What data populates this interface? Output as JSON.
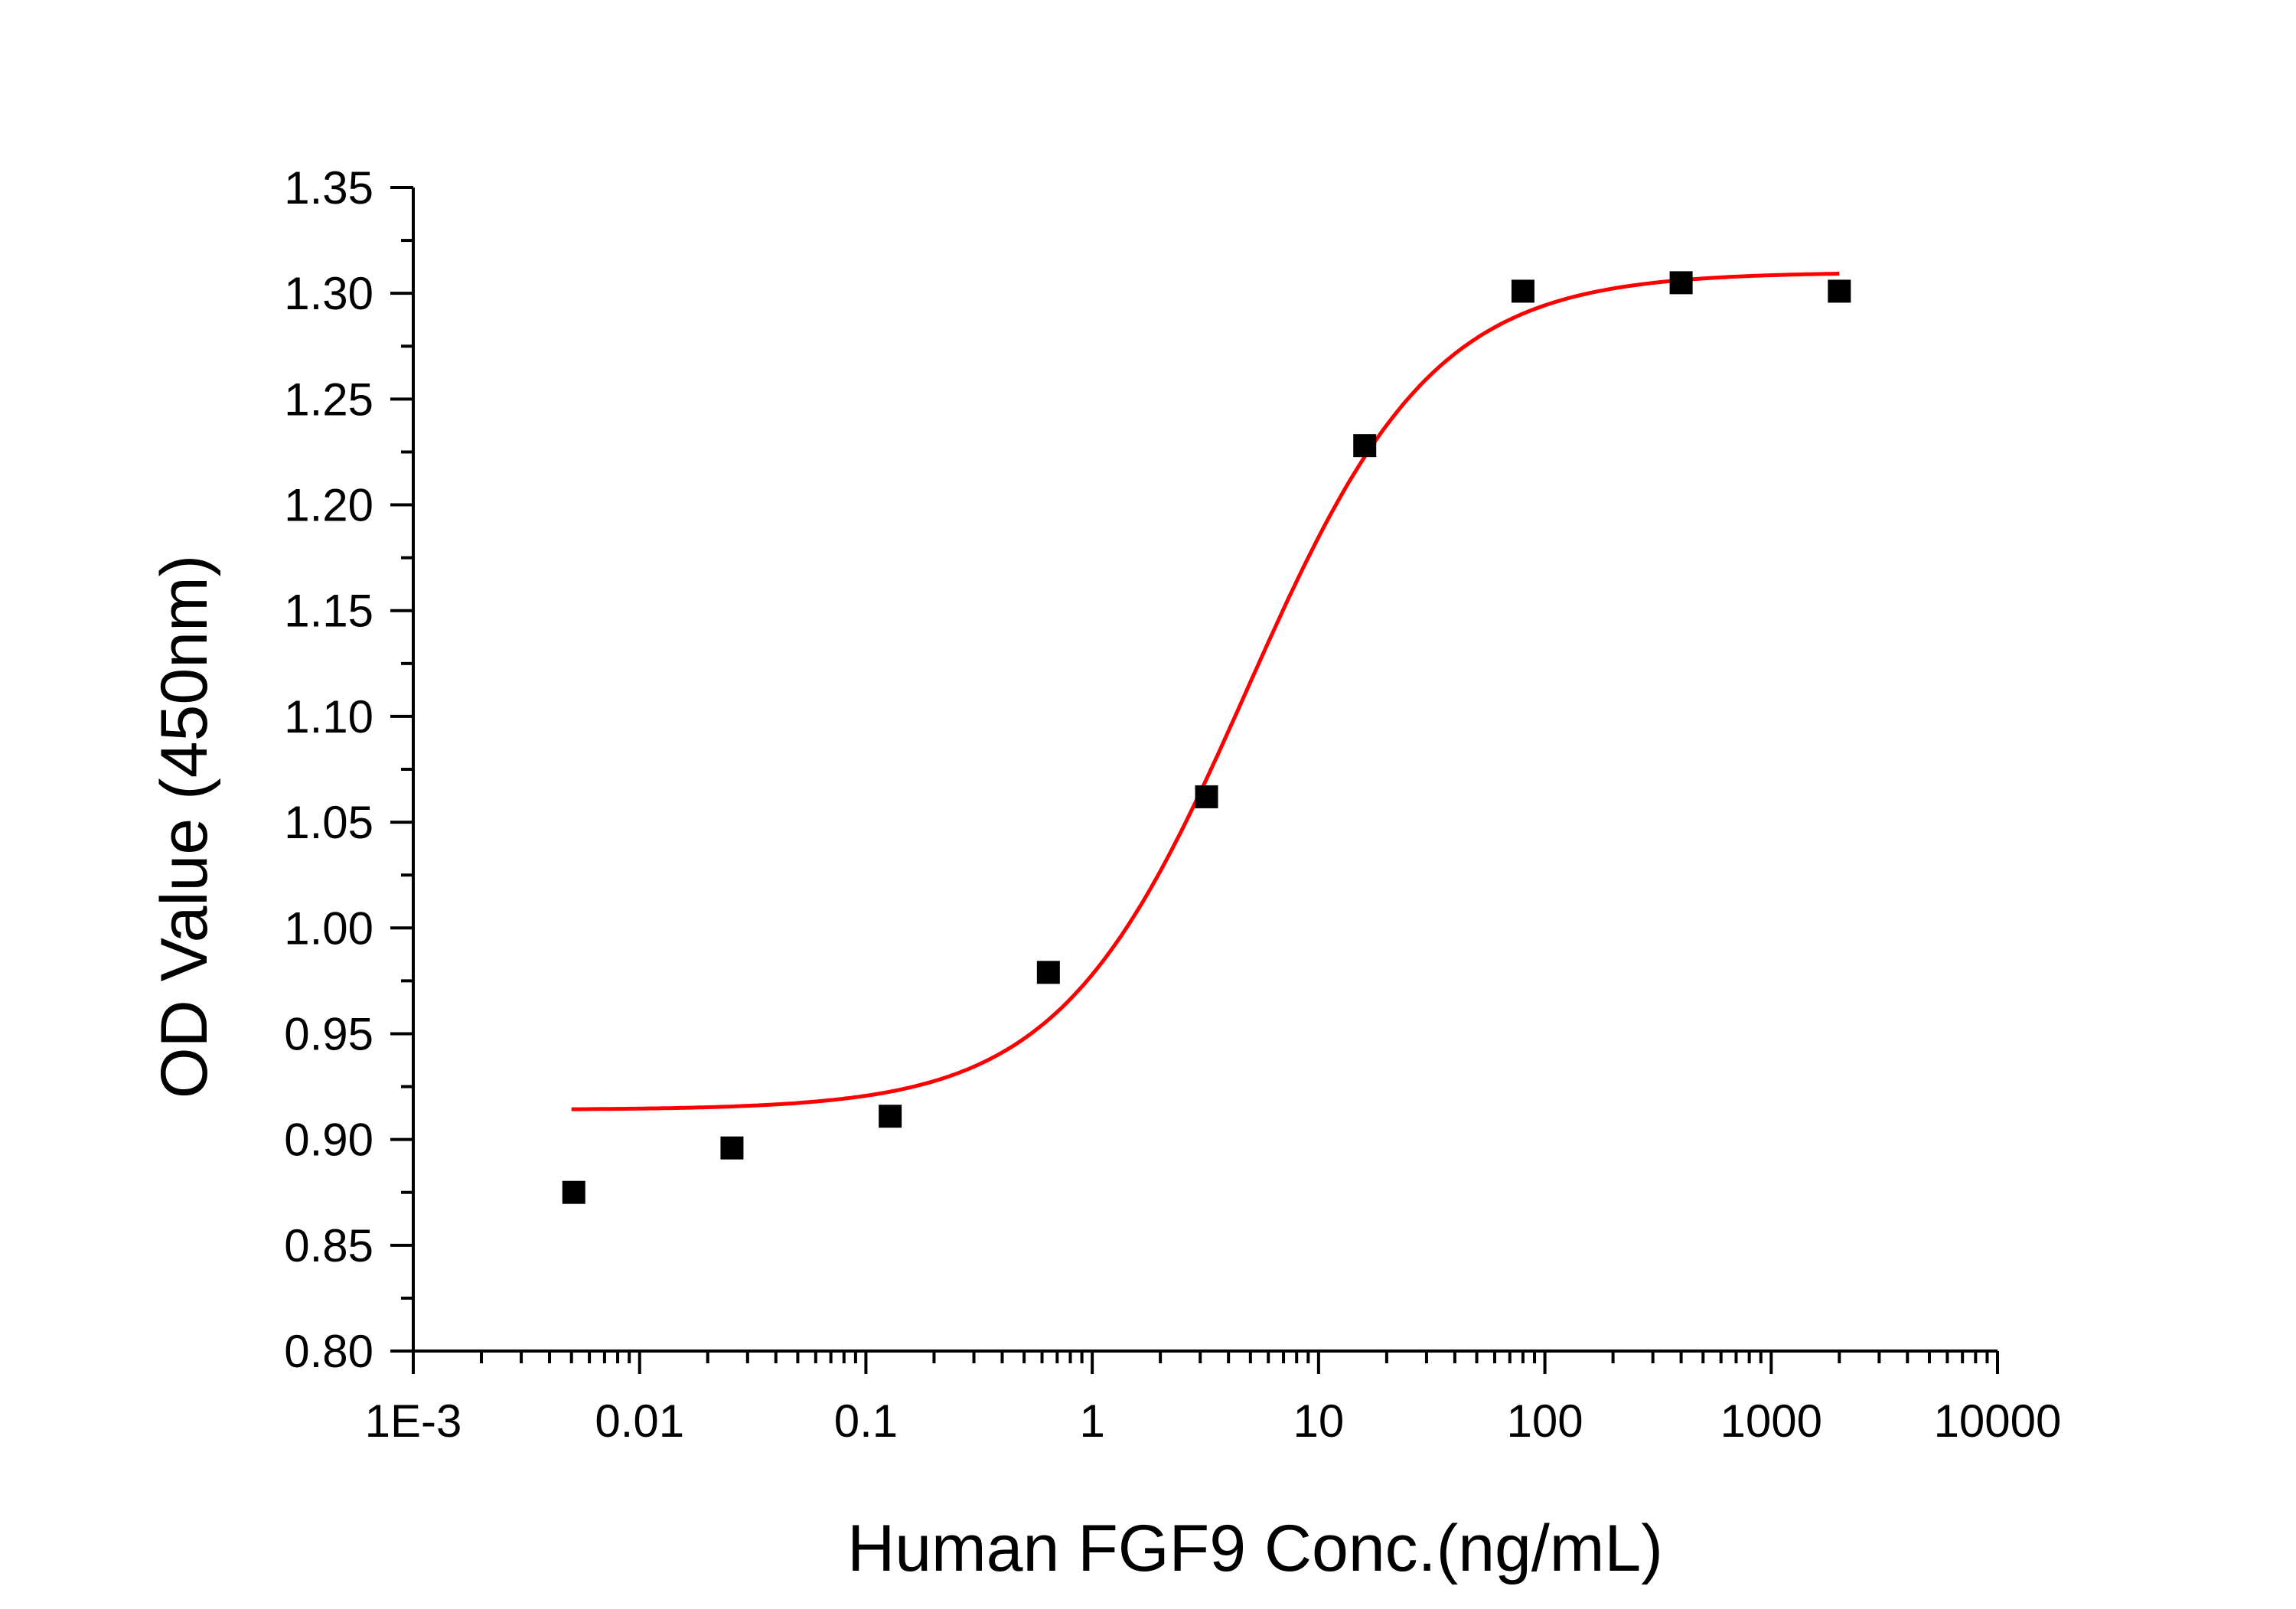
{
  "chart_data": {
    "type": "scatter",
    "title": "",
    "xlabel": "Human FGF9 Conc.(ng/mL)",
    "ylabel": "OD Value (450nm)",
    "xscale": "log",
    "xlim": [
      0.001,
      10000
    ],
    "ylim": [
      0.8,
      1.35
    ],
    "x_tick_labels": [
      "1E-3",
      "0.01",
      "0.1",
      "1",
      "10",
      "100",
      "1000",
      "10000"
    ],
    "y_tick_labels": [
      "0.80",
      "0.85",
      "0.90",
      "0.95",
      "1.00",
      "1.05",
      "1.10",
      "1.15",
      "1.20",
      "1.25",
      "1.30",
      "1.35"
    ],
    "series": [
      {
        "name": "data",
        "marker": "square",
        "color": "#000000",
        "x": [
          0.00512,
          0.0256,
          0.128,
          0.64,
          3.2,
          16,
          80,
          400,
          2000
        ],
        "y": [
          0.875,
          0.896,
          0.911,
          0.979,
          1.062,
          1.228,
          1.301,
          1.305,
          1.301
        ]
      },
      {
        "name": "fit",
        "line": true,
        "color": "#ff0000",
        "model": "4PL",
        "params": {
          "bottom": 0.914,
          "top": 1.31,
          "ec50": 4.8,
          "hill": 1.05
        },
        "x_range": [
          0.005,
          2000
        ]
      }
    ],
    "grid": false,
    "legend": "none"
  }
}
